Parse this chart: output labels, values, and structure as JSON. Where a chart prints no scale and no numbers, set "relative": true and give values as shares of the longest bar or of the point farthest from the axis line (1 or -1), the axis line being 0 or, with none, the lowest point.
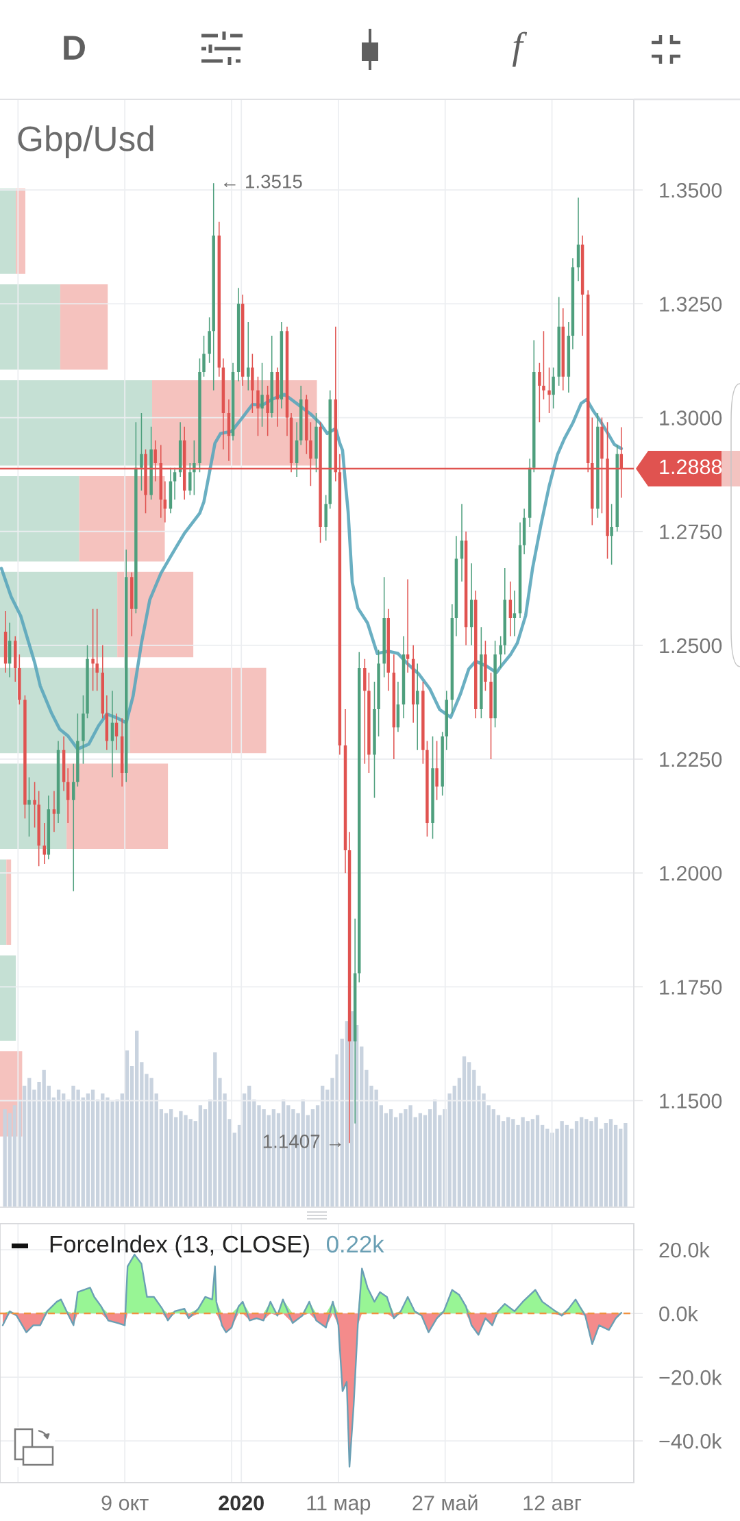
{
  "chart_data": [
    {
      "type": "candlestick",
      "title": "Gbp/Usd",
      "x": [
        "2019-07-15",
        "2019-07-18",
        "2019-07-22",
        "2019-07-25",
        "2019-07-29",
        "2019-08-01",
        "2019-08-05",
        "2019-08-08",
        "2019-08-12",
        "2019-08-15",
        "2019-08-19",
        "2019-08-22",
        "2019-08-26",
        "2019-08-29",
        "2019-09-02",
        "2019-09-05",
        "2019-09-09",
        "2019-09-12",
        "2019-09-16",
        "2019-09-19",
        "2019-09-23",
        "2019-09-26",
        "2019-09-30",
        "2019-10-03",
        "2019-10-07",
        "2019-10-10",
        "2019-10-14",
        "2019-10-17",
        "2019-10-21",
        "2019-10-24",
        "2019-10-28",
        "2019-10-31",
        "2019-11-04",
        "2019-11-07",
        "2019-11-11",
        "2019-11-14",
        "2019-11-18",
        "2019-11-21",
        "2019-11-25",
        "2019-11-28",
        "2019-12-02",
        "2019-12-05",
        "2019-12-09",
        "2019-12-12",
        "2019-12-16",
        "2019-12-19",
        "2019-12-23",
        "2019-12-26",
        "2019-12-30",
        "2020-01-02",
        "2020-01-06",
        "2020-01-09",
        "2020-01-13",
        "2020-01-16",
        "2020-01-20",
        "2020-01-23",
        "2020-01-27",
        "2020-01-30",
        "2020-02-03",
        "2020-02-06",
        "2020-02-10",
        "2020-02-13",
        "2020-02-17",
        "2020-02-20",
        "2020-02-24",
        "2020-02-27",
        "2020-03-02",
        "2020-03-05",
        "2020-03-09",
        "2020-03-12",
        "2020-03-16",
        "2020-03-19",
        "2020-03-23",
        "2020-03-26",
        "2020-03-30",
        "2020-04-02",
        "2020-04-06",
        "2020-04-09",
        "2020-04-13",
        "2020-04-16",
        "2020-04-20",
        "2020-04-23",
        "2020-04-27",
        "2020-04-30",
        "2020-05-04",
        "2020-05-07",
        "2020-05-11",
        "2020-05-14",
        "2020-05-18",
        "2020-05-21",
        "2020-05-25",
        "2020-05-28",
        "2020-06-01",
        "2020-06-04",
        "2020-06-08",
        "2020-06-11",
        "2020-06-15",
        "2020-06-18",
        "2020-06-22",
        "2020-06-25",
        "2020-06-29",
        "2020-07-02",
        "2020-07-06",
        "2020-07-09",
        "2020-07-13",
        "2020-07-16",
        "2020-07-20",
        "2020-07-23",
        "2020-07-27",
        "2020-07-30",
        "2020-08-03",
        "2020-08-06",
        "2020-08-10",
        "2020-08-13",
        "2020-08-17",
        "2020-08-20",
        "2020-08-24",
        "2020-08-27",
        "2020-08-31",
        "2020-09-03",
        "2020-09-07",
        "2020-09-10",
        "2020-09-14",
        "2020-09-17",
        "2020-09-21",
        "2020-09-24",
        "2020-09-28",
        "2020-10-01"
      ],
      "ohlc": [
        [
          1.253,
          1.2575,
          1.244,
          1.246
        ],
        [
          1.246,
          1.255,
          1.243,
          1.251
        ],
        [
          1.251,
          1.252,
          1.242,
          1.245
        ],
        [
          1.245,
          1.248,
          1.237,
          1.238
        ],
        [
          1.238,
          1.239,
          1.212,
          1.215
        ],
        [
          1.215,
          1.221,
          1.208,
          1.216
        ],
        [
          1.216,
          1.22,
          1.21,
          1.215
        ],
        [
          1.215,
          1.218,
          1.2015,
          1.206
        ],
        [
          1.206,
          1.211,
          1.202,
          1.204
        ],
        [
          1.204,
          1.217,
          1.203,
          1.214
        ],
        [
          1.214,
          1.218,
          1.209,
          1.213
        ],
        [
          1.213,
          1.229,
          1.211,
          1.227
        ],
        [
          1.227,
          1.23,
          1.218,
          1.22
        ],
        [
          1.22,
          1.223,
          1.211,
          1.216
        ],
        [
          1.216,
          1.224,
          1.196,
          1.22
        ],
        [
          1.22,
          1.235,
          1.219,
          1.229
        ],
        [
          1.229,
          1.239,
          1.224,
          1.235
        ],
        [
          1.235,
          1.25,
          1.234,
          1.247
        ],
        [
          1.247,
          1.258,
          1.24,
          1.246
        ],
        [
          1.246,
          1.258,
          1.24,
          1.244
        ],
        [
          1.244,
          1.25,
          1.234,
          1.235
        ],
        [
          1.235,
          1.239,
          1.227,
          1.229
        ],
        [
          1.229,
          1.24,
          1.221,
          1.233
        ],
        [
          1.233,
          1.235,
          1.227,
          1.23
        ],
        [
          1.23,
          1.234,
          1.219,
          1.222
        ],
        [
          1.222,
          1.271,
          1.22,
          1.265
        ],
        [
          1.265,
          1.266,
          1.252,
          1.258
        ],
        [
          1.258,
          1.299,
          1.257,
          1.289
        ],
        [
          1.289,
          1.301,
          1.284,
          1.292
        ],
        [
          1.292,
          1.293,
          1.279,
          1.283
        ],
        [
          1.283,
          1.298,
          1.282,
          1.293
        ],
        [
          1.293,
          1.295,
          1.286,
          1.29
        ],
        [
          1.29,
          1.294,
          1.278,
          1.282
        ],
        [
          1.282,
          1.286,
          1.277,
          1.28
        ],
        [
          1.28,
          1.289,
          1.279,
          1.286
        ],
        [
          1.286,
          1.289,
          1.282,
          1.288
        ],
        [
          1.288,
          1.299,
          1.287,
          1.295
        ],
        [
          1.295,
          1.298,
          1.282,
          1.284
        ],
        [
          1.284,
          1.29,
          1.283,
          1.288
        ],
        [
          1.288,
          1.295,
          1.283,
          1.29
        ],
        [
          1.29,
          1.313,
          1.288,
          1.31
        ],
        [
          1.31,
          1.318,
          1.309,
          1.314
        ],
        [
          1.314,
          1.322,
          1.312,
          1.319
        ],
        [
          1.319,
          1.3515,
          1.306,
          1.34
        ],
        [
          1.34,
          1.343,
          1.309,
          1.311
        ],
        [
          1.311,
          1.313,
          1.293,
          1.301
        ],
        [
          1.301,
          1.304,
          1.2905,
          1.296
        ],
        [
          1.296,
          1.312,
          1.295,
          1.31
        ],
        [
          1.31,
          1.3285,
          1.308,
          1.325
        ],
        [
          1.325,
          1.327,
          1.307,
          1.309
        ],
        [
          1.309,
          1.321,
          1.306,
          1.311
        ],
        [
          1.311,
          1.314,
          1.301,
          1.306
        ],
        [
          1.306,
          1.309,
          1.296,
          1.302
        ],
        [
          1.302,
          1.312,
          1.298,
          1.305
        ],
        [
          1.305,
          1.307,
          1.296,
          1.301
        ],
        [
          1.301,
          1.318,
          1.3,
          1.31
        ],
        [
          1.31,
          1.311,
          1.298,
          1.304
        ],
        [
          1.304,
          1.321,
          1.302,
          1.319
        ],
        [
          1.319,
          1.32,
          1.296,
          1.3
        ],
        [
          1.3,
          1.301,
          1.288,
          1.29
        ],
        [
          1.29,
          1.299,
          1.287,
          1.295
        ],
        [
          1.295,
          1.307,
          1.294,
          1.304
        ],
        [
          1.304,
          1.305,
          1.292,
          1.295
        ],
        [
          1.295,
          1.299,
          1.285,
          1.291
        ],
        [
          1.291,
          1.301,
          1.288,
          1.298
        ],
        [
          1.298,
          1.299,
          1.2725,
          1.276
        ],
        [
          1.276,
          1.283,
          1.273,
          1.281
        ],
        [
          1.281,
          1.306,
          1.28,
          1.304
        ],
        [
          1.304,
          1.32,
          1.286,
          1.288
        ],
        [
          1.288,
          1.292,
          1.226,
          1.228
        ],
        [
          1.228,
          1.236,
          1.2,
          1.205
        ],
        [
          1.205,
          1.209,
          1.1407,
          1.163
        ],
        [
          1.163,
          1.19,
          1.145,
          1.178
        ],
        [
          1.178,
          1.2485,
          1.176,
          1.245
        ],
        [
          1.245,
          1.247,
          1.224,
          1.24
        ],
        [
          1.24,
          1.244,
          1.222,
          1.226
        ],
        [
          1.226,
          1.242,
          1.2165,
          1.236
        ],
        [
          1.236,
          1.249,
          1.23,
          1.246
        ],
        [
          1.246,
          1.265,
          1.243,
          1.256
        ],
        [
          1.256,
          1.258,
          1.24,
          1.244
        ],
        [
          1.244,
          1.248,
          1.225,
          1.232
        ],
        [
          1.232,
          1.242,
          1.231,
          1.237
        ],
        [
          1.237,
          1.252,
          1.234,
          1.248
        ],
        [
          1.248,
          1.2645,
          1.244,
          1.247
        ],
        [
          1.247,
          1.25,
          1.233,
          1.237
        ],
        [
          1.237,
          1.246,
          1.227,
          1.24
        ],
        [
          1.24,
          1.242,
          1.224,
          1.227
        ],
        [
          1.227,
          1.229,
          1.208,
          1.211
        ],
        [
          1.211,
          1.23,
          1.2075,
          1.223
        ],
        [
          1.223,
          1.229,
          1.216,
          1.219
        ],
        [
          1.219,
          1.231,
          1.217,
          1.23
        ],
        [
          1.23,
          1.24,
          1.227,
          1.238
        ],
        [
          1.238,
          1.259,
          1.235,
          1.256
        ],
        [
          1.256,
          1.274,
          1.252,
          1.269
        ],
        [
          1.269,
          1.281,
          1.264,
          1.273
        ],
        [
          1.273,
          1.275,
          1.25,
          1.254
        ],
        [
          1.254,
          1.268,
          1.25,
          1.26
        ],
        [
          1.26,
          1.262,
          1.234,
          1.236
        ],
        [
          1.236,
          1.254,
          1.234,
          1.248
        ],
        [
          1.248,
          1.251,
          1.24,
          1.242
        ],
        [
          1.242,
          1.244,
          1.225,
          1.234
        ],
        [
          1.234,
          1.251,
          1.232,
          1.248
        ],
        [
          1.248,
          1.252,
          1.245,
          1.25
        ],
        [
          1.25,
          1.267,
          1.248,
          1.26
        ],
        [
          1.26,
          1.264,
          1.252,
          1.256
        ],
        [
          1.256,
          1.262,
          1.252,
          1.257
        ],
        [
          1.257,
          1.277,
          1.256,
          1.272
        ],
        [
          1.272,
          1.28,
          1.27,
          1.278
        ],
        [
          1.278,
          1.291,
          1.276,
          1.289
        ],
        [
          1.289,
          1.317,
          1.288,
          1.31
        ],
        [
          1.31,
          1.312,
          1.299,
          1.307
        ],
        [
          1.307,
          1.319,
          1.304,
          1.306
        ],
        [
          1.306,
          1.311,
          1.301,
          1.305
        ],
        [
          1.305,
          1.311,
          1.302,
          1.309
        ],
        [
          1.309,
          1.3265,
          1.307,
          1.32
        ],
        [
          1.32,
          1.324,
          1.306,
          1.309
        ],
        [
          1.309,
          1.321,
          1.3055,
          1.318
        ],
        [
          1.318,
          1.335,
          1.315,
          1.333
        ],
        [
          1.333,
          1.3483,
          1.33,
          1.338
        ],
        [
          1.338,
          1.34,
          1.318,
          1.327
        ],
        [
          1.327,
          1.328,
          1.288,
          1.29
        ],
        [
          1.29,
          1.3,
          1.2764,
          1.28
        ],
        [
          1.28,
          1.301,
          1.278,
          1.298
        ],
        [
          1.298,
          1.3,
          1.279,
          1.291
        ],
        [
          1.291,
          1.299,
          1.269,
          1.274
        ],
        [
          1.274,
          1.281,
          1.2677,
          1.276
        ],
        [
          1.276,
          1.294,
          1.275,
          1.292
        ],
        [
          1.292,
          1.2979,
          1.2824,
          1.2888
        ]
      ],
      "colors": [
        "#e05350",
        "#4e9f7d",
        "#e05350",
        "#e05350",
        "#e05350",
        "#4e9f7d",
        "#e05350",
        "#e05350",
        "#e05350",
        "#4e9f7d",
        "#e05350",
        "#4e9f7d",
        "#e05350",
        "#e05350",
        "#4e9f7d",
        "#4e9f7d",
        "#4e9f7d",
        "#4e9f7d",
        "#e05350",
        "#e05350",
        "#e05350",
        "#e05350",
        "#4e9f7d",
        "#e05350",
        "#e05350",
        "#4e9f7d",
        "#e05350",
        "#4e9f7d",
        "#4e9f7d",
        "#e05350",
        "#4e9f7d",
        "#e05350",
        "#e05350",
        "#e05350",
        "#4e9f7d",
        "#4e9f7d",
        "#4e9f7d",
        "#e05350",
        "#4e9f7d",
        "#4e9f7d",
        "#4e9f7d",
        "#4e9f7d",
        "#4e9f7d",
        "#4e9f7d",
        "#e05350",
        "#e05350",
        "#e05350",
        "#4e9f7d",
        "#4e9f7d",
        "#e05350",
        "#4e9f7d",
        "#e05350",
        "#e05350",
        "#4e9f7d",
        "#e05350",
        "#4e9f7d",
        "#e05350",
        "#4e9f7d",
        "#e05350",
        "#e05350",
        "#4e9f7d",
        "#4e9f7d",
        "#e05350",
        "#e05350",
        "#4e9f7d",
        "#e05350",
        "#4e9f7d",
        "#4e9f7d",
        "#e05350",
        "#e05350",
        "#e05350",
        "#e05350",
        "#4e9f7d",
        "#4e9f7d",
        "#e05350",
        "#e05350",
        "#4e9f7d",
        "#4e9f7d",
        "#4e9f7d",
        "#e05350",
        "#e05350",
        "#4e9f7d",
        "#4e9f7d",
        "#e05350",
        "#e05350",
        "#4e9f7d",
        "#e05350",
        "#e05350",
        "#4e9f7d",
        "#e05350",
        "#4e9f7d",
        "#4e9f7d",
        "#4e9f7d",
        "#4e9f7d",
        "#4e9f7d",
        "#e05350",
        "#4e9f7d",
        "#e05350",
        "#4e9f7d",
        "#e05350",
        "#e05350",
        "#4e9f7d",
        "#4e9f7d",
        "#4e9f7d",
        "#e05350",
        "#4e9f7d",
        "#4e9f7d",
        "#4e9f7d",
        "#4e9f7d",
        "#4e9f7d",
        "#e05350",
        "#e05350",
        "#e05350",
        "#4e9f7d",
        "#4e9f7d",
        "#e05350",
        "#4e9f7d",
        "#4e9f7d",
        "#4e9f7d",
        "#e05350",
        "#e05350",
        "#e05350",
        "#4e9f7d",
        "#e05350",
        "#e05350",
        "#4e9f7d",
        "#4e9f7d",
        "#e05350"
      ],
      "series": [
        {
          "type": "line",
          "color": "#5aa6bb",
          "x": [
            "2019-07-12",
            "2019-07-19",
            "2019-07-26",
            "2019-07-31",
            "2019-08-05",
            "2019-08-09",
            "2019-08-17",
            "2019-08-23",
            "2019-08-29",
            "2019-09-05",
            "2019-09-13",
            "2019-09-20",
            "2019-09-26",
            "2019-10-03",
            "2019-10-10",
            "2019-10-15",
            "2019-10-21",
            "2019-10-27",
            "2019-11-04",
            "2019-11-11",
            "2019-11-21",
            "2019-12-02",
            "2019-12-05",
            "2019-12-09",
            "2019-12-13",
            "2019-12-17",
            "2019-12-25",
            "2020-01-01",
            "2020-01-09",
            "2020-01-16",
            "2020-01-23",
            "2020-02-01",
            "2020-02-06",
            "2020-02-13",
            "2020-02-20",
            "2020-02-27",
            "2020-03-03",
            "2020-03-09",
            "2020-03-12",
            "2020-03-14",
            "2020-03-16",
            "2020-03-18",
            "2020-03-21",
            "2020-03-25",
            "2020-04-01",
            "2020-04-08",
            "2020-04-16",
            "2020-04-23",
            "2020-04-30",
            "2020-05-08",
            "2020-05-16",
            "2020-05-23",
            "2020-05-31",
            "2020-06-07",
            "2020-06-13",
            "2020-06-18",
            "2020-06-26",
            "2020-07-03",
            "2020-07-06",
            "2020-07-13",
            "2020-07-18",
            "2020-07-24",
            "2020-07-29",
            "2020-08-04",
            "2020-08-10",
            "2020-08-16",
            "2020-08-21",
            "2020-08-27",
            "2020-09-02",
            "2020-09-06",
            "2020-09-11",
            "2020-09-16",
            "2020-09-22",
            "2020-09-26",
            "2020-10-01"
          ],
          "values": [
            1.2669,
            1.2607,
            1.2564,
            1.2513,
            1.2462,
            1.2411,
            1.2352,
            1.2316,
            1.2301,
            1.2272,
            1.2283,
            1.2323,
            1.2349,
            1.2341,
            1.233,
            1.2389,
            1.2505,
            1.26,
            1.2658,
            1.2695,
            1.2746,
            1.279,
            1.2815,
            1.2879,
            1.2944,
            1.2965,
            1.297,
            1.2997,
            1.3029,
            1.3027,
            1.304,
            1.3051,
            1.304,
            1.3024,
            1.3008,
            1.2987,
            1.2965,
            1.2976,
            1.2944,
            1.2928,
            1.2858,
            1.2794,
            1.2638,
            1.2582,
            1.2549,
            1.2482,
            1.2487,
            1.2482,
            1.2459,
            1.2437,
            1.2404,
            1.2359,
            1.2342,
            1.2393,
            1.2448,
            1.2465,
            1.2454,
            1.244,
            1.2453,
            1.2479,
            1.2505,
            1.2565,
            1.2669,
            1.2764,
            1.285,
            1.2919,
            1.2954,
            1.2988,
            1.3031,
            1.304,
            1.3014,
            1.2992,
            1.2962,
            1.2941,
            1.2932
          ]
        }
      ],
      "xlim": [
        "2019-07-11",
        "2020-10-10"
      ],
      "xticks": [
        {
          "value": "2019-07-24",
          "label": null
        },
        {
          "value": "2019-10-09",
          "label": null
        },
        {
          "value": "2019-12-25",
          "label": null
        },
        {
          "value": "2020-01-01",
          "label": null
        },
        {
          "value": "2020-03-11",
          "label": null
        },
        {
          "value": "2020-05-27",
          "label": null
        },
        {
          "value": "2020-08-12",
          "label": null
        }
      ],
      "ylim": [
        1.1266,
        1.3699
      ],
      "yticks": [
        {
          "value": 1.15,
          "label": "1.1500"
        },
        {
          "value": 1.175,
          "label": "1.1750"
        },
        {
          "value": 1.2,
          "label": "1.2000"
        },
        {
          "value": 1.225,
          "label": "1.2250"
        },
        {
          "value": 1.25,
          "label": "1.2500"
        },
        {
          "value": 1.275,
          "label": "1.2750"
        },
        {
          "value": 1.3,
          "label": "1.3000"
        },
        {
          "value": 1.325,
          "label": "1.3250"
        },
        {
          "value": 1.35,
          "label": "1.3500"
        }
      ],
      "grid": true,
      "tick_labels": "y",
      "ref_lines": [
        {
          "axis": "y",
          "value": 1.2888,
          "label": "1.2888",
          "color": "#e05350"
        }
      ],
      "annotations": [
        {
          "text": "← 1.3515",
          "x": "2019-12-12",
          "y": 1.3515
        },
        {
          "text": "1.1407 →",
          "x": "2020-03-19",
          "y": 1.1407
        },
        "D",
        "f"
      ]
    },
    {
      "type": "bar",
      "orientation": "horizontal",
      "stacked": true,
      "relative": true,
      "categories": [
        null,
        null,
        null,
        null,
        null,
        null,
        null,
        null,
        null,
        null
      ],
      "series": [
        {
          "color": "#c5e0d4",
          "values": [
            0.05,
            0.19,
            0.48,
            0.25,
            0.37,
            0.41,
            0.21,
            0.02,
            0.05,
            null
          ]
        },
        {
          "color": "#f5c2be",
          "values": [
            0.03,
            0.15,
            0.52,
            0.27,
            0.24,
            0.43,
            0.32,
            0.015,
            null,
            0.07
          ]
        }
      ],
      "tick_labels": false
    },
    {
      "type": "bar",
      "relative": true,
      "color": "#c9d3df",
      "tick_labels": false,
      "categories": [
        null,
        null,
        null,
        null,
        null,
        null,
        null,
        null,
        null,
        null,
        null,
        null,
        null,
        null,
        null,
        null,
        null,
        null,
        null,
        null,
        null,
        null,
        null,
        null,
        null,
        null,
        null,
        null,
        null,
        null,
        null,
        null,
        null,
        null,
        null,
        null,
        null,
        null,
        null,
        null,
        null,
        null,
        null,
        null,
        null,
        null,
        null,
        null,
        null,
        null,
        null,
        null,
        null,
        null,
        null,
        null,
        null,
        null,
        null,
        null,
        null,
        null,
        null,
        null,
        null,
        null,
        null,
        null,
        null,
        null,
        null,
        null,
        null,
        null,
        null,
        null,
        null,
        null,
        null,
        null,
        null,
        null,
        null,
        null,
        null,
        null,
        null,
        null,
        null,
        null,
        null,
        null,
        null,
        null,
        null,
        null,
        null,
        null,
        null,
        null,
        null,
        null,
        null,
        null,
        null,
        null,
        null,
        null,
        null,
        null,
        null,
        null,
        null,
        null,
        null,
        null,
        null,
        null,
        null,
        null,
        null,
        null,
        null,
        null,
        null,
        null,
        null,
        null
      ],
      "values": [
        0.5,
        0.48,
        0.52,
        0.55,
        0.62,
        0.66,
        0.6,
        0.64,
        0.7,
        0.62,
        0.56,
        0.6,
        0.58,
        0.55,
        0.62,
        0.6,
        0.56,
        0.58,
        0.6,
        0.55,
        0.58,
        0.56,
        0.54,
        0.55,
        0.58,
        0.8,
        0.72,
        0.9,
        0.74,
        0.68,
        0.66,
        0.58,
        0.5,
        0.48,
        0.5,
        0.46,
        0.49,
        0.47,
        0.45,
        0.44,
        0.52,
        0.5,
        0.55,
        0.79,
        0.66,
        0.58,
        0.45,
        0.38,
        0.42,
        0.58,
        0.62,
        0.55,
        0.52,
        0.5,
        0.47,
        0.5,
        0.48,
        0.55,
        0.52,
        0.5,
        0.48,
        0.55,
        0.47,
        0.5,
        0.52,
        0.62,
        0.6,
        0.66,
        0.78,
        0.86,
        0.95,
        1.0,
        0.93,
        0.82,
        0.7,
        0.62,
        0.6,
        0.52,
        0.48,
        0.5,
        0.46,
        0.48,
        0.5,
        0.52,
        0.46,
        0.48,
        0.47,
        0.5,
        0.55,
        0.47,
        0.5,
        0.58,
        0.62,
        0.66,
        0.77,
        0.74,
        0.7,
        0.62,
        0.58,
        0.52,
        0.5,
        0.47,
        0.44,
        0.46,
        0.45,
        0.42,
        0.46,
        0.44,
        0.45,
        0.47,
        0.42,
        0.4,
        0.38,
        0.4,
        0.44,
        0.42,
        0.4,
        0.44,
        0.46,
        0.45,
        0.44,
        0.46,
        0.4,
        0.43,
        0.45,
        0.42,
        0.4,
        0.43
      ]
    },
    {
      "type": "area",
      "title": "ForceIndex (13, CLOSE)",
      "annotations": [
        "0.22k"
      ],
      "x": [
        "2019-07-13",
        "2019-07-18",
        "2019-07-23",
        "2019-07-30",
        "2019-08-04",
        "2019-08-09",
        "2019-08-14",
        "2019-08-21",
        "2019-08-24",
        "2019-08-28",
        "2019-09-02",
        "2019-09-05",
        "2019-09-14",
        "2019-09-17",
        "2019-09-22",
        "2019-09-27",
        "2019-10-04",
        "2019-10-09",
        "2019-10-11",
        "2019-10-16",
        "2019-10-21",
        "2019-10-25",
        "2019-10-30",
        "2019-11-05",
        "2019-11-09",
        "2019-11-14",
        "2019-11-21",
        "2019-11-24",
        "2019-12-01",
        "2019-12-06",
        "2019-12-11",
        "2019-12-13",
        "2019-12-14",
        "2019-12-18",
        "2019-12-21",
        "2019-12-25",
        "2019-12-30",
        "2020-01-02",
        "2020-01-07",
        "2020-01-12",
        "2020-01-17",
        "2020-01-22",
        "2020-01-27",
        "2020-01-31",
        "2020-02-07",
        "2020-02-14",
        "2020-02-19",
        "2020-02-24",
        "2020-03-02",
        "2020-03-07",
        "2020-03-11",
        "2020-03-14",
        "2020-03-17",
        "2020-03-19",
        "2020-03-22",
        "2020-03-25",
        "2020-03-28",
        "2020-04-01",
        "2020-04-06",
        "2020-04-10",
        "2020-04-15",
        "2020-04-20",
        "2020-04-25",
        "2020-04-30",
        "2020-05-05",
        "2020-05-10",
        "2020-05-15",
        "2020-05-21",
        "2020-05-26",
        "2020-06-01",
        "2020-06-06",
        "2020-06-11",
        "2020-06-15",
        "2020-06-20",
        "2020-06-25",
        "2020-06-30",
        "2020-07-04",
        "2020-07-09",
        "2020-07-16",
        "2020-07-22",
        "2020-07-31",
        "2020-08-05",
        "2020-08-12",
        "2020-08-19",
        "2020-08-24",
        "2020-08-29",
        "2020-09-05",
        "2020-09-10",
        "2020-09-15",
        "2020-09-22",
        "2020-09-27",
        "2020-10-01"
      ],
      "series": [
        {
          "color": "#98f595",
          "values": [
            0,
            700,
            0,
            0,
            0,
            0,
            700,
            3700,
            4400,
            700,
            0,
            6700,
            8100,
            5200,
            2200,
            0,
            0,
            0,
            14800,
            18500,
            15600,
            5200,
            5200,
            1500,
            0,
            700,
            1500,
            0,
            1500,
            5200,
            4400,
            14800,
            3700,
            0,
            0,
            0,
            2200,
            3700,
            0,
            0,
            0,
            3700,
            0,
            4400,
            0,
            0,
            3700,
            0,
            0,
            3700,
            0,
            0,
            0,
            0,
            0,
            0,
            14100,
            8100,
            3700,
            6700,
            5200,
            0,
            700,
            5200,
            700,
            0,
            0,
            0,
            700,
            7400,
            5900,
            2200,
            0,
            0,
            0,
            0,
            700,
            3000,
            700,
            3700,
            7400,
            3700,
            1500,
            0,
            1500,
            4400,
            0,
            0,
            0,
            0,
            0,
            220
          ]
        },
        {
          "color": "#f48b8b",
          "values": [
            -3700,
            0,
            -700,
            -5900,
            -3700,
            -3700,
            0,
            0,
            0,
            0,
            -3700,
            0,
            0,
            0,
            0,
            -2200,
            -3000,
            -3700,
            0,
            0,
            0,
            0,
            0,
            0,
            -2200,
            0,
            0,
            -1500,
            0,
            0,
            0,
            0,
            0,
            -3700,
            -5900,
            -4400,
            0,
            0,
            -2200,
            -1500,
            -2200,
            0,
            -700,
            0,
            -3000,
            -700,
            0,
            -2200,
            -4400,
            0,
            -3700,
            -24400,
            -21500,
            -48100,
            -28900,
            -3700,
            0,
            0,
            0,
            0,
            0,
            -1500,
            0,
            0,
            0,
            -700,
            -5900,
            -1500,
            0,
            0,
            0,
            0,
            -3700,
            -6700,
            -1500,
            -3700,
            0,
            0,
            0,
            0,
            0,
            0,
            0,
            -700,
            0,
            0,
            -700,
            -9600,
            -3700,
            -5200,
            -1500,
            0
          ]
        },
        {
          "type": "line",
          "color": "#6a9fb4",
          "values": [
            -3700,
            700,
            -700,
            -5900,
            -3700,
            -3700,
            700,
            3700,
            4400,
            700,
            -3700,
            6700,
            8100,
            5200,
            2200,
            -2200,
            -3000,
            -3700,
            14800,
            18500,
            15600,
            5200,
            5200,
            1500,
            -2200,
            700,
            1500,
            -1500,
            1500,
            5200,
            4400,
            14800,
            3700,
            -3700,
            -5900,
            -4400,
            2200,
            3700,
            -2200,
            -1500,
            -2200,
            3700,
            -700,
            4400,
            -3000,
            -700,
            3700,
            -2200,
            -4400,
            3700,
            -3700,
            -24400,
            -21500,
            -48100,
            -28900,
            -3700,
            14100,
            8100,
            3700,
            6700,
            5200,
            -1500,
            700,
            5200,
            700,
            -700,
            -5900,
            -1500,
            700,
            7400,
            5900,
            2200,
            -3700,
            -6700,
            -1500,
            -3700,
            700,
            3000,
            700,
            3700,
            7400,
            3700,
            1500,
            -700,
            1500,
            4400,
            -700,
            -9600,
            -3700,
            -5200,
            -1500,
            220
          ]
        }
      ],
      "xlim": [
        "2019-07-11",
        "2020-10-10"
      ],
      "xticks": [
        {
          "value": "2019-07-24",
          "label": null
        },
        {
          "value": "2019-10-09",
          "label": "9 окт"
        },
        {
          "value": "2019-12-25",
          "label": null
        },
        {
          "value": "2020-01-01",
          "label": "2020"
        },
        {
          "value": "2020-03-11",
          "label": "11 мар"
        },
        {
          "value": "2020-05-27",
          "label": "27 май"
        },
        {
          "value": "2020-08-12",
          "label": "12 авг"
        }
      ],
      "ylim": [
        -53100,
        28200
      ],
      "yticks": [
        {
          "value": -40000,
          "label": "−40.0k"
        },
        {
          "value": -20000,
          "label": "−20.0k"
        },
        {
          "value": 0,
          "label": "0.0k"
        },
        {
          "value": 20000,
          "label": "20.0k"
        }
      ],
      "grid": true,
      "ref_lines": [
        {
          "axis": "y",
          "value": 0,
          "color": "#f0913f",
          "line_style": "dashed"
        }
      ]
    }
  ]
}
